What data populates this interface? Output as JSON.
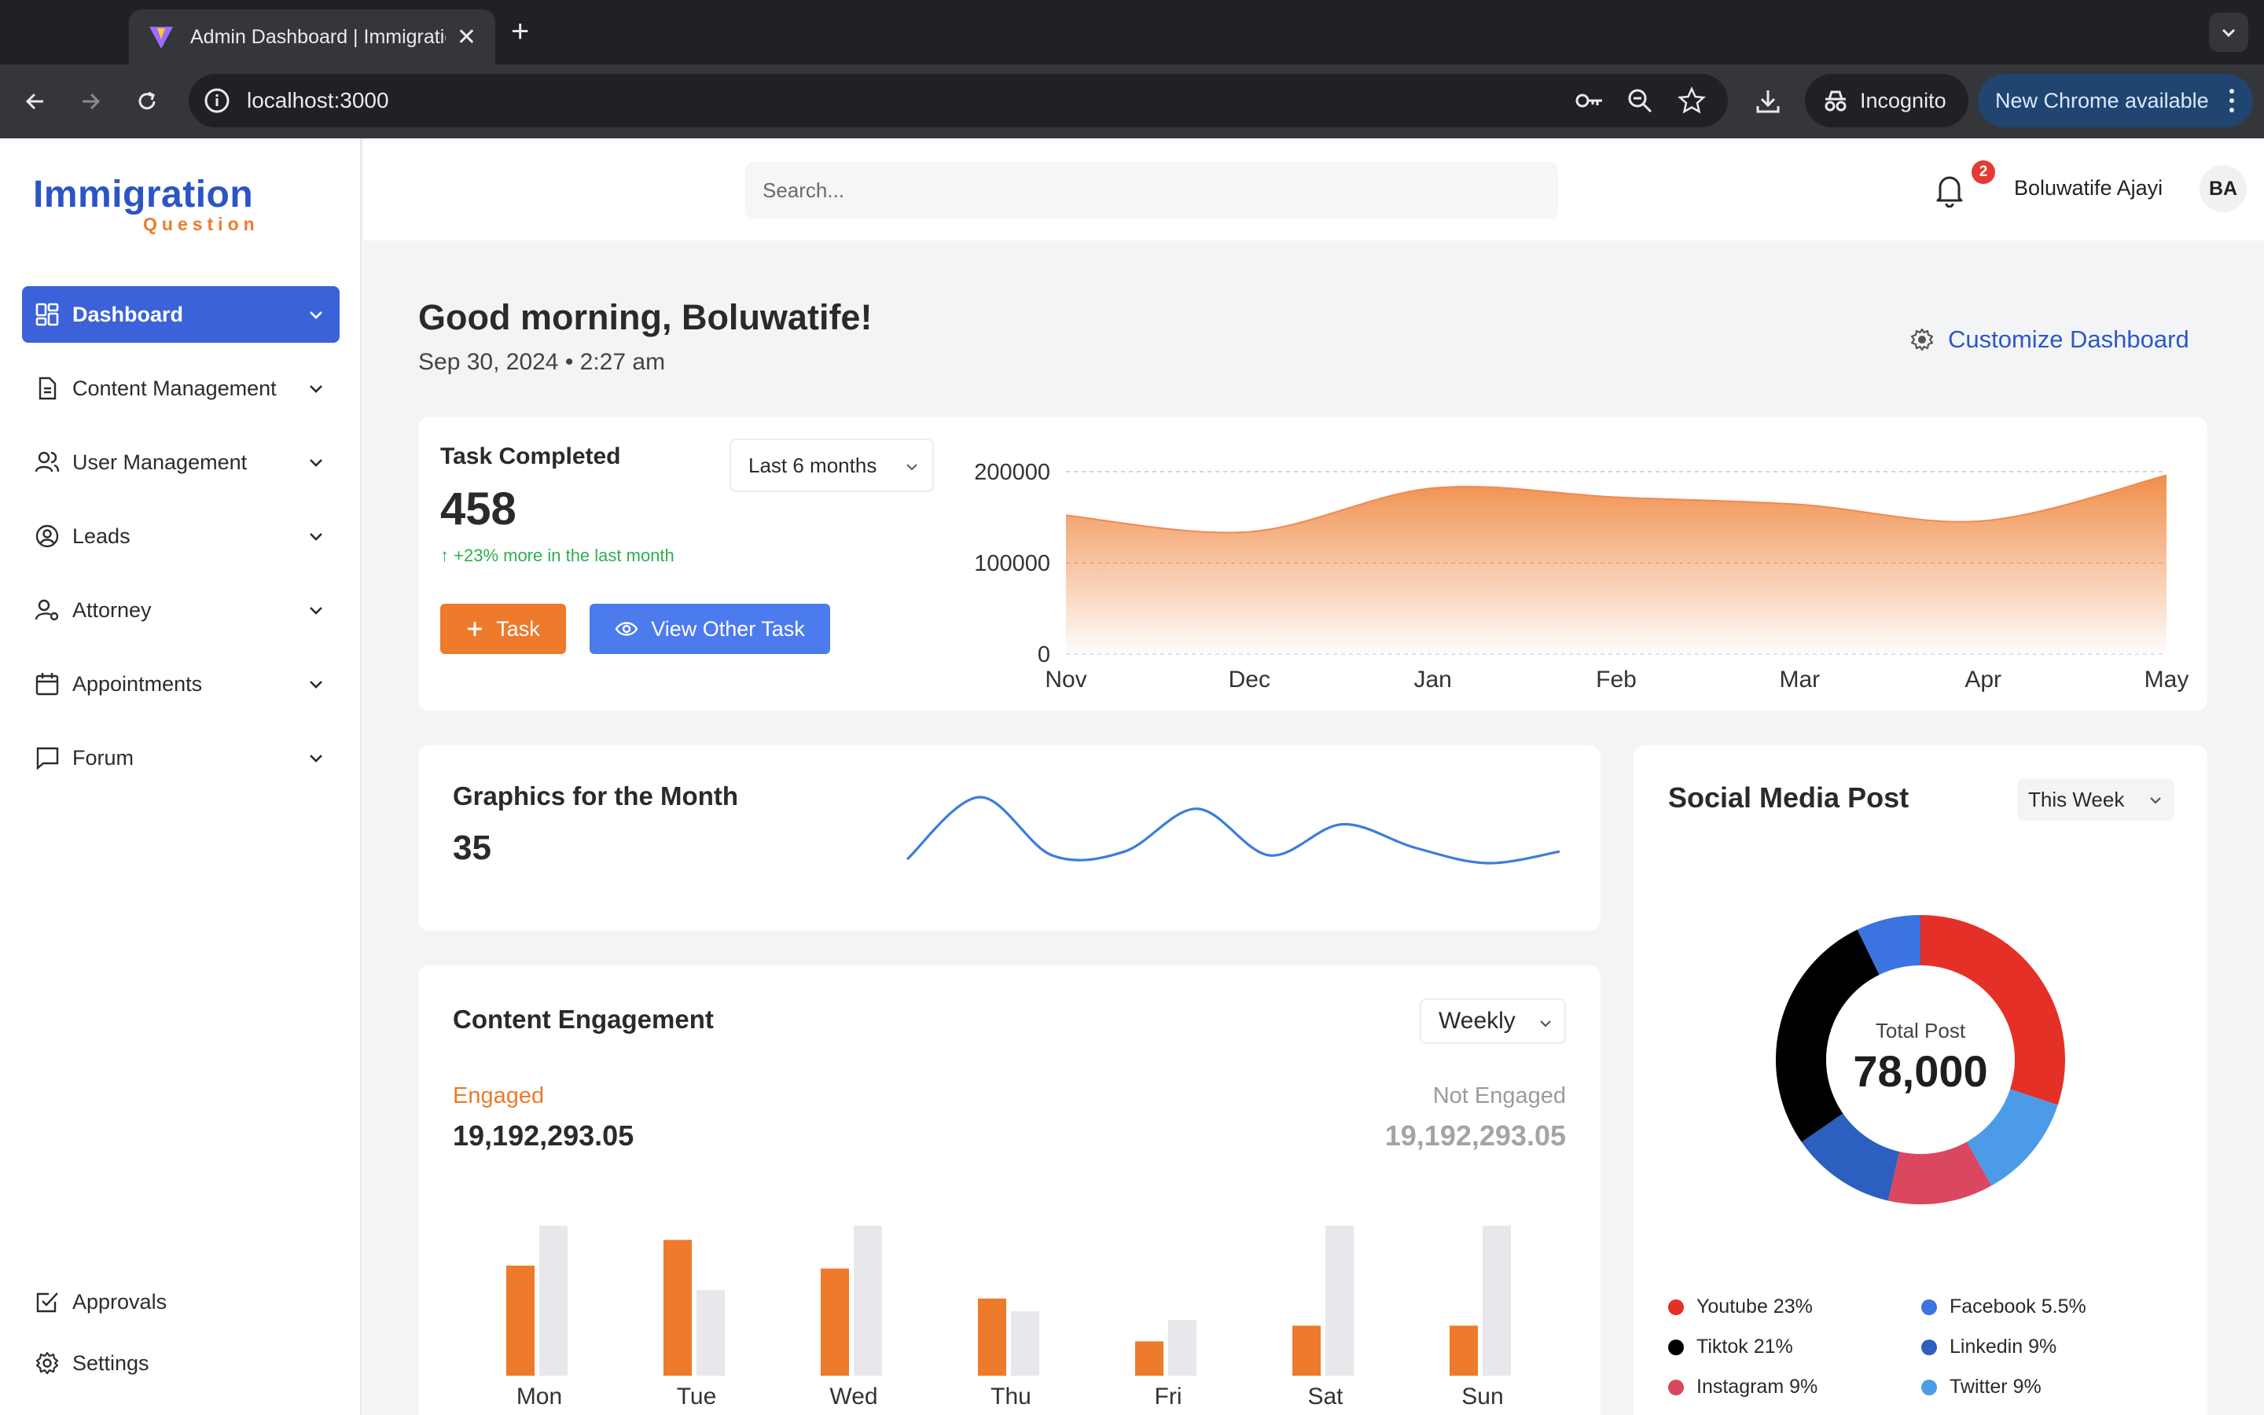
{
  "browser": {
    "tab_title": "Admin Dashboard | Immigratio",
    "url": "localhost:3000",
    "incognito_label": "Incognito",
    "update_label": "New Chrome available",
    "colors": {
      "frame": "#202124",
      "toolbar": "#35363a"
    }
  },
  "sidebar": {
    "logo_main": "Immigration",
    "logo_sub": "Question",
    "items": [
      {
        "label": "Dashboard",
        "icon": "grid-icon",
        "active": true
      },
      {
        "label": "Content Management",
        "icon": "document-icon"
      },
      {
        "label": "User Management",
        "icon": "users-icon"
      },
      {
        "label": "Leads",
        "icon": "user-circle-icon"
      },
      {
        "label": "Attorney",
        "icon": "user-gear-icon"
      },
      {
        "label": "Appointments",
        "icon": "calendar-icon"
      },
      {
        "label": "Forum",
        "icon": "chat-icon"
      }
    ],
    "bottom_items": [
      {
        "label": "Approvals",
        "icon": "checkbox-icon"
      },
      {
        "label": "Settings",
        "icon": "gear-icon"
      }
    ]
  },
  "header": {
    "search_placeholder": "Search...",
    "notifications": "2",
    "user_name": "Boluwatife Ajayi",
    "avatar_initials": "BA"
  },
  "main": {
    "greeting": "Good morning, Boluwatife!",
    "date": "Sep 30, 2024 • 2:27 am",
    "customize_label": "Customize Dashboard"
  },
  "task_card": {
    "title": "Task Completed",
    "value": "458",
    "trend": "+23% more in the last month",
    "period": "Last 6 months",
    "task_button": "Task",
    "view_button": "View Other Task"
  },
  "graphics_card": {
    "title": "Graphics for the Month",
    "value": "35"
  },
  "engagement_card": {
    "title": "Content Engagement",
    "period": "Weekly",
    "engaged_label": "Engaged",
    "engaged_value": "19,192,293.05",
    "not_engaged_label": "Not Engaged",
    "not_engaged_value": "19,192,293.05"
  },
  "social_card": {
    "title": "Social Media Post",
    "period": "This Week",
    "center_label": "Total Post",
    "center_value": "78,000"
  },
  "chart_data": [
    {
      "type": "area",
      "x": [
        "Nov",
        "Dec",
        "Jan",
        "Feb",
        "Mar",
        "Apr",
        "May"
      ],
      "series": [
        {
          "values": [
            152000,
            134000,
            182000,
            172000,
            164000,
            146000,
            196000
          ]
        }
      ],
      "yticks": [
        "0",
        "100000",
        "200000"
      ],
      "ylim": [
        0,
        200000
      ],
      "grid": true,
      "color": "#ee7a2b"
    },
    {
      "type": "line",
      "series": [
        {
          "values": [
            2,
            18,
            3,
            4,
            15,
            3,
            11,
            5,
            1,
            4
          ]
        }
      ],
      "color": "#3b7ddd"
    },
    {
      "type": "bar",
      "categories": [
        "Mon",
        "Tue",
        "Wed",
        "Thu",
        "Fri",
        "Sat",
        "Sun"
      ],
      "series": [
        {
          "name": "Engaged",
          "values": [
            77,
            95,
            75,
            54,
            24,
            35,
            35
          ],
          "color": "#ee7a2b"
        },
        {
          "name": "Not Engaged",
          "values": [
            105,
            60,
            105,
            45,
            39,
            105,
            105
          ],
          "color": "#e8e8ec"
        }
      ],
      "ylim": [
        0,
        110
      ]
    },
    {
      "type": "pie",
      "donut": true,
      "slices": [
        {
          "label": "Youtube 23%",
          "value": 23,
          "color": "#e53027"
        },
        {
          "label": "Twitter 9%",
          "value": 9,
          "color": "#4c9be8"
        },
        {
          "label": "Instagram 9%",
          "value": 9,
          "color": "#d9485e"
        },
        {
          "label": "Linkedin 9%",
          "value": 9,
          "color": "#2c5fbf"
        },
        {
          "label": "Tiktok 21%",
          "value": 21,
          "color": "#000000"
        },
        {
          "label": "Facebook 5.5%",
          "value": 5.5,
          "color": "#3b73e0"
        }
      ],
      "legend_order": [
        "Youtube 23%",
        "Facebook 5.5%",
        "Tiktok 21%",
        "Linkedin 9%",
        "Instagram 9%",
        "Twitter 9%"
      ]
    }
  ]
}
